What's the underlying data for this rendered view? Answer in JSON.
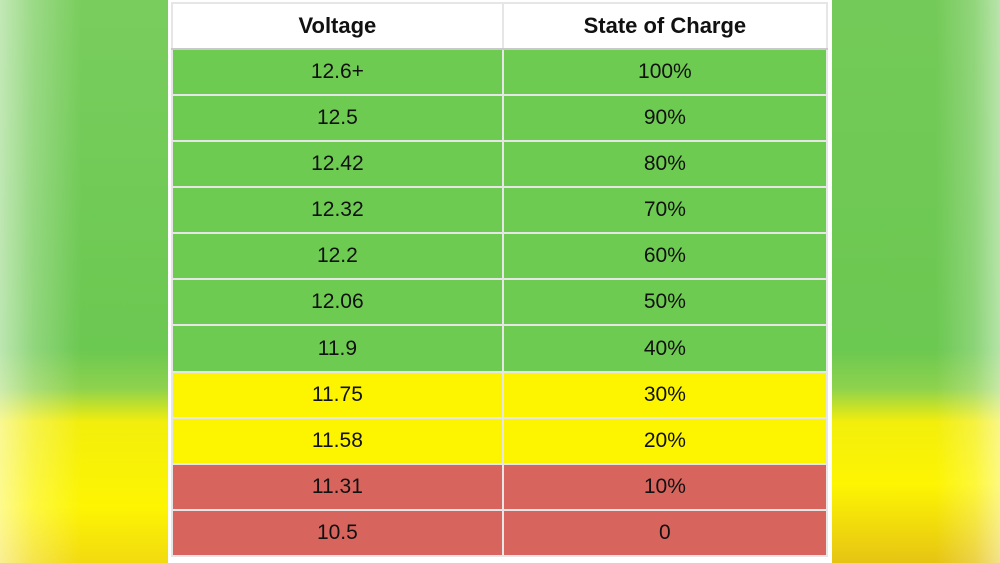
{
  "table": {
    "headers": [
      "Voltage",
      "State of Charge"
    ],
    "rows": [
      {
        "voltage": "12.6+",
        "state_of_charge": "100%",
        "band": "green"
      },
      {
        "voltage": "12.5",
        "state_of_charge": "90%",
        "band": "green"
      },
      {
        "voltage": "12.42",
        "state_of_charge": "80%",
        "band": "green"
      },
      {
        "voltage": "12.32",
        "state_of_charge": "70%",
        "band": "green"
      },
      {
        "voltage": "12.2",
        "state_of_charge": "60%",
        "band": "green"
      },
      {
        "voltage": "12.06",
        "state_of_charge": "50%",
        "band": "green"
      },
      {
        "voltage": "11.9",
        "state_of_charge": "40%",
        "band": "green"
      },
      {
        "voltage": "11.75",
        "state_of_charge": "30%",
        "band": "yellow"
      },
      {
        "voltage": "11.58",
        "state_of_charge": "20%",
        "band": "yellow"
      },
      {
        "voltage": "11.31",
        "state_of_charge": "10%",
        "band": "red"
      },
      {
        "voltage": "10.5",
        "state_of_charge": "0",
        "band": "red"
      }
    ]
  },
  "colors": {
    "green": "#6ecb51",
    "yellow": "#fdf500",
    "red": "#d8655d",
    "header_bg": "#ffffff",
    "text": "#111111",
    "background_green": "#6bc851",
    "background_yellow": "#fdf502"
  },
  "chart_data": {
    "type": "table",
    "title": "",
    "columns": [
      "Voltage",
      "State of Charge"
    ],
    "rows": [
      [
        "12.6+",
        "100%"
      ],
      [
        "12.5",
        "90%"
      ],
      [
        "12.42",
        "80%"
      ],
      [
        "12.32",
        "70%"
      ],
      [
        "12.2",
        "60%"
      ],
      [
        "12.06",
        "50%"
      ],
      [
        "11.9",
        "40%"
      ],
      [
        "11.75",
        "30%"
      ],
      [
        "11.58",
        "20%"
      ],
      [
        "11.31",
        "10%"
      ],
      [
        "10.5",
        "0"
      ]
    ],
    "row_color_bands": {
      "green": [
        "100%",
        "90%",
        "80%",
        "70%",
        "60%",
        "50%",
        "40%"
      ],
      "yellow": [
        "30%",
        "20%"
      ],
      "red": [
        "10%",
        "0"
      ]
    }
  }
}
